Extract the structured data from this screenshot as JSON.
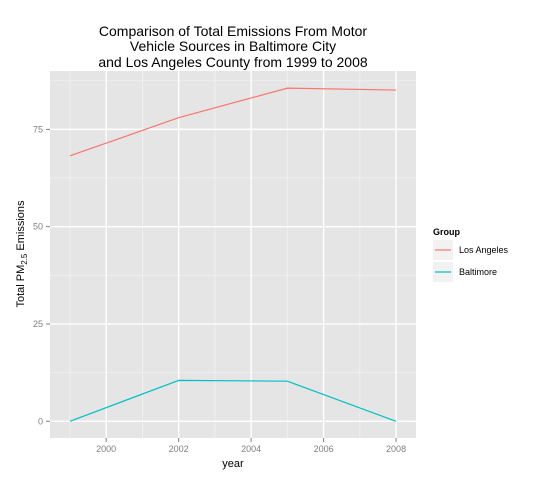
{
  "chart_data": {
    "type": "line",
    "title_lines": [
      "Comparison of Total Emissions From Motor",
      "Vehicle Sources in Baltimore City",
      "and Los Angeles County from 1999 to 2008"
    ],
    "xlabel": "year",
    "ylabel_main": "Total PM",
    "ylabel_sub": "2.5",
    "ylabel_tail": " Emissions",
    "x": [
      1999,
      2002,
      2005,
      2008
    ],
    "xlim": [
      1998.45,
      2008.55
    ],
    "ylim": [
      -4.3,
      90
    ],
    "x_ticks": [
      2000,
      2002,
      2004,
      2006,
      2008
    ],
    "x_tick_labels": [
      "2000",
      "2002",
      "2004",
      "2006",
      "2008"
    ],
    "y_ticks": [
      0,
      25,
      50,
      75
    ],
    "y_tick_labels": [
      "0",
      "25",
      "50",
      "75"
    ],
    "grid": true,
    "legend_title": "Group",
    "legend_position": "right",
    "series": [
      {
        "name": "Los Angeles",
        "color": "#F8766D",
        "values": [
          68.2,
          78.0,
          85.6,
          85.1
        ]
      },
      {
        "name": "Baltimore",
        "color": "#00BFC4",
        "values": [
          0.0,
          10.5,
          10.3,
          0.0
        ]
      }
    ]
  }
}
